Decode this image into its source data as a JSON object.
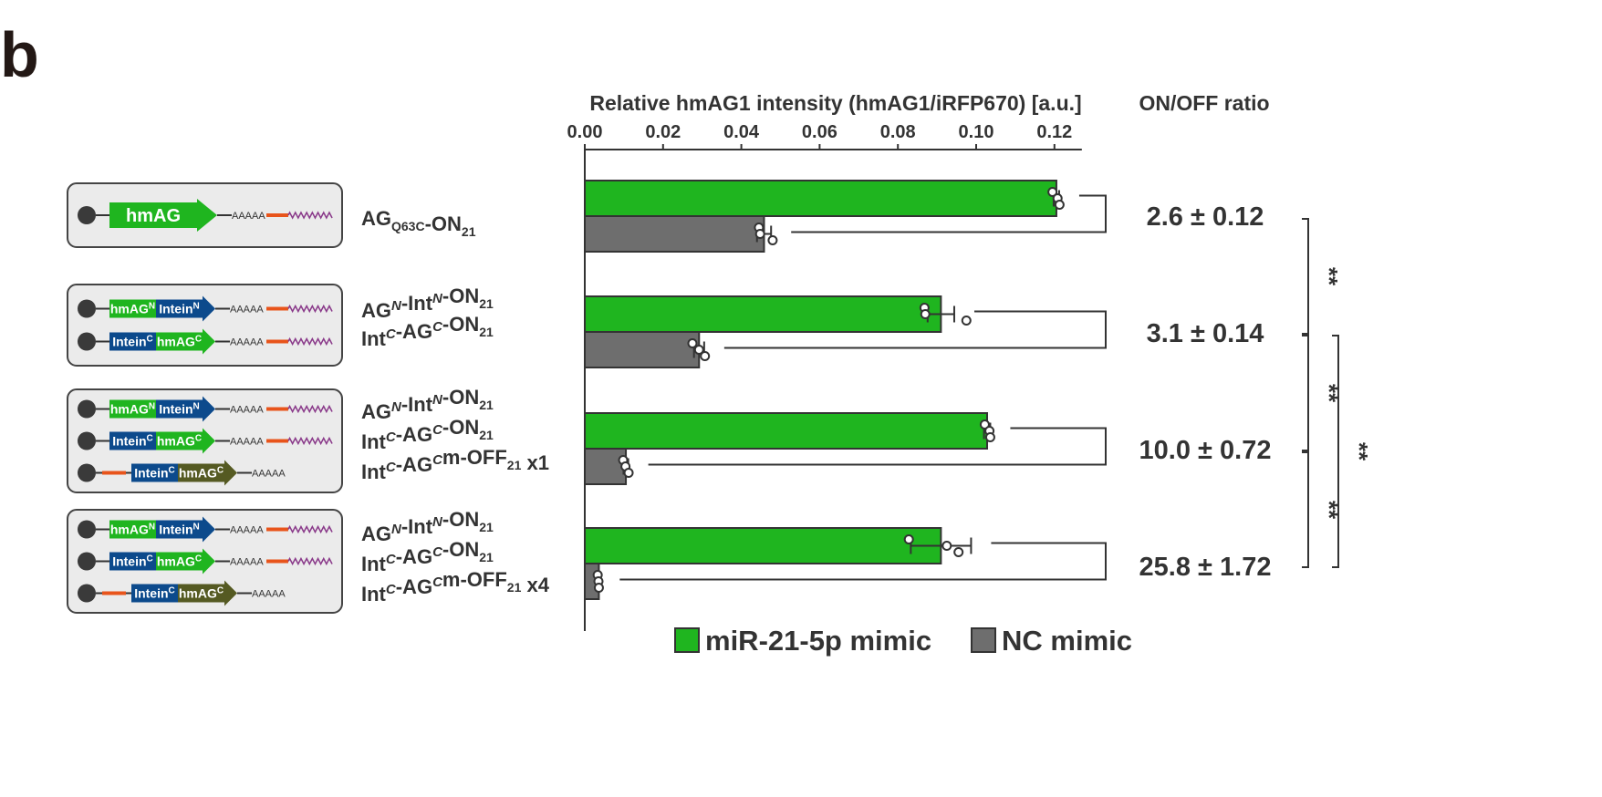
{
  "panel_label": "b",
  "colors": {
    "mir": "#1fb51f",
    "nc": "#6e6e6e",
    "construct_bg": "#ebebeb",
    "hmag_green": "#1fb51f",
    "intein_blue": "#0c4a8c",
    "olive": "#555a22",
    "target_site": "#e8541b",
    "polyA_tail": "#8a3a8a"
  },
  "constructs": [
    {
      "rows": [
        {
          "blocks": [
            {
              "text": "hmAG",
              "color": "hmag_green"
            }
          ],
          "leading_site": false,
          "polyA": "AAAAA",
          "target_site": true,
          "tail": true
        }
      ]
    },
    {
      "rows": [
        {
          "blocks": [
            {
              "text": "hmAG",
              "sup": "N",
              "color": "hmag_green"
            },
            {
              "text": "Intein",
              "sup": "N",
              "color": "intein_blue"
            }
          ],
          "leading_site": false,
          "polyA": "AAAAA",
          "target_site": true,
          "tail": true
        },
        {
          "blocks": [
            {
              "text": "Intein",
              "sup": "C",
              "color": "intein_blue"
            },
            {
              "text": "hmAG",
              "sup": "C",
              "color": "hmag_green"
            }
          ],
          "leading_site": false,
          "polyA": "AAAAA",
          "target_site": true,
          "tail": true
        }
      ]
    },
    {
      "rows": [
        {
          "blocks": [
            {
              "text": "hmAG",
              "sup": "N",
              "color": "hmag_green"
            },
            {
              "text": "Intein",
              "sup": "N",
              "color": "intein_blue"
            }
          ],
          "leading_site": false,
          "polyA": "AAAAA",
          "target_site": true,
          "tail": true
        },
        {
          "blocks": [
            {
              "text": "Intein",
              "sup": "C",
              "color": "intein_blue"
            },
            {
              "text": "hmAG",
              "sup": "C",
              "color": "hmag_green"
            }
          ],
          "leading_site": false,
          "polyA": "AAAAA",
          "target_site": true,
          "tail": true
        },
        {
          "blocks": [
            {
              "text": "Intein",
              "sup": "C",
              "color": "intein_blue"
            },
            {
              "text": "hmAG",
              "sup": "C",
              "color": "olive"
            }
          ],
          "leading_site": true,
          "polyA": "AAAAA",
          "target_site": false,
          "tail": false
        }
      ]
    },
    {
      "rows": [
        {
          "blocks": [
            {
              "text": "hmAG",
              "sup": "N",
              "color": "hmag_green"
            },
            {
              "text": "Intein",
              "sup": "N",
              "color": "intein_blue"
            }
          ],
          "leading_site": false,
          "polyA": "AAAAA",
          "target_site": true,
          "tail": true
        },
        {
          "blocks": [
            {
              "text": "Intein",
              "sup": "C",
              "color": "intein_blue"
            },
            {
              "text": "hmAG",
              "sup": "C",
              "color": "hmag_green"
            }
          ],
          "leading_site": false,
          "polyA": "AAAAA",
          "target_site": true,
          "tail": true
        },
        {
          "blocks": [
            {
              "text": "Intein",
              "sup": "C",
              "color": "intein_blue"
            },
            {
              "text": "hmAG",
              "sup": "C",
              "color": "olive"
            }
          ],
          "leading_site": true,
          "polyA": "AAAAA",
          "target_site": false,
          "tail": false
        }
      ]
    }
  ],
  "chart_data": {
    "type": "bar",
    "orientation": "horizontal",
    "xlabel": "Relative hmAG1 intensity (hmAG1/iRFP670) [a.u.]",
    "xlim": [
      0,
      0.127
    ],
    "xticks": [
      "0.00",
      "0.02",
      "0.04",
      "0.06",
      "0.08",
      "0.10",
      "0.12"
    ],
    "ratio_header": "ON/OFF ratio",
    "groups": [
      {
        "label_lines": [
          [
            {
              "t": "AG"
            },
            {
              "t": "Q63C",
              "sub": true
            },
            {
              "t": "-ON"
            },
            {
              "t": "21",
              "sub": true
            }
          ]
        ],
        "mir": {
          "value": 0.1205,
          "err": 0.0007,
          "points": [
            0.1195,
            0.1208,
            0.1213
          ]
        },
        "nc": {
          "value": 0.0458,
          "err": 0.0018,
          "points": [
            0.0445,
            0.0448,
            0.048
          ]
        },
        "ratio": "2.6 ± 0.12"
      },
      {
        "label_lines": [
          [
            {
              "t": "AG"
            },
            {
              "t": "N",
              "sup": true,
              "it": true
            },
            {
              "t": "-Int"
            },
            {
              "t": "N",
              "sup": true,
              "it": true
            },
            {
              "t": "-ON"
            },
            {
              "t": "21",
              "sub": true
            }
          ],
          [
            {
              "t": "Int"
            },
            {
              "t": "C",
              "sup": true,
              "it": true
            },
            {
              "t": "-AG"
            },
            {
              "t": "C",
              "sup": true,
              "it": true
            },
            {
              "t": "-ON"
            },
            {
              "t": "21",
              "sub": true
            }
          ]
        ],
        "mir": {
          "value": 0.091,
          "err": 0.0034,
          "points": [
            0.0868,
            0.087,
            0.0975
          ]
        },
        "nc": {
          "value": 0.0292,
          "err": 0.0013,
          "points": [
            0.0275,
            0.0292,
            0.0307
          ]
        },
        "ratio": "3.1 ± 0.14"
      },
      {
        "label_lines": [
          [
            {
              "t": "AG"
            },
            {
              "t": "N",
              "sup": true,
              "it": true
            },
            {
              "t": "-Int"
            },
            {
              "t": "N",
              "sup": true,
              "it": true
            },
            {
              "t": "-ON"
            },
            {
              "t": "21",
              "sub": true
            }
          ],
          [
            {
              "t": "Int"
            },
            {
              "t": "C",
              "sup": true,
              "it": true
            },
            {
              "t": "-AG"
            },
            {
              "t": "C",
              "sup": true,
              "it": true
            },
            {
              "t": "-ON"
            },
            {
              "t": "21",
              "sub": true
            }
          ],
          [
            {
              "t": "Int"
            },
            {
              "t": "C",
              "sup": true,
              "it": true
            },
            {
              "t": "-AG"
            },
            {
              "t": "C",
              "sup": true,
              "it": true
            },
            {
              "t": "m-OFF"
            },
            {
              "t": "21",
              "sub": true
            },
            {
              "t": " x1"
            }
          ]
        ],
        "mir": {
          "value": 0.1028,
          "err": 0.0008,
          "points": [
            0.1022,
            0.1034,
            0.1036
          ]
        },
        "nc": {
          "value": 0.0105,
          "err": 0.0006,
          "points": [
            0.0098,
            0.0104,
            0.0112
          ]
        },
        "ratio": "10.0 ± 0.72"
      },
      {
        "label_lines": [
          [
            {
              "t": "AG"
            },
            {
              "t": "N",
              "sup": true,
              "it": true
            },
            {
              "t": "-Int"
            },
            {
              "t": "N",
              "sup": true,
              "it": true
            },
            {
              "t": "-ON"
            },
            {
              "t": "21",
              "sub": true
            }
          ],
          [
            {
              "t": "Int"
            },
            {
              "t": "C",
              "sup": true,
              "it": true
            },
            {
              "t": "-AG"
            },
            {
              "t": "C",
              "sup": true,
              "it": true
            },
            {
              "t": "-ON"
            },
            {
              "t": "21",
              "sub": true
            }
          ],
          [
            {
              "t": "Int"
            },
            {
              "t": "C",
              "sup": true,
              "it": true
            },
            {
              "t": "-AG"
            },
            {
              "t": "C",
              "sup": true,
              "it": true
            },
            {
              "t": "m-OFF"
            },
            {
              "t": "21",
              "sub": true
            },
            {
              "t": " x4"
            }
          ]
        ],
        "mir": {
          "value": 0.091,
          "err": 0.0077,
          "points": [
            0.0828,
            0.0925,
            0.0955
          ]
        },
        "nc": {
          "value": 0.0036,
          "err": 0.0002,
          "points": [
            0.0033,
            0.0035,
            0.0036
          ]
        },
        "ratio": "25.8 ± 1.72"
      }
    ],
    "legend": [
      {
        "label": "miR-21-5p mimic",
        "color_key": "mir"
      },
      {
        "label": "NC mimic",
        "color_key": "nc"
      }
    ],
    "significance": [
      {
        "from": 0,
        "to": 1,
        "label": "**"
      },
      {
        "from": 1,
        "to": 2,
        "label": "**"
      },
      {
        "from": 2,
        "to": 3,
        "label": "**"
      },
      {
        "from": 1,
        "to": 3,
        "label": "**"
      }
    ]
  }
}
